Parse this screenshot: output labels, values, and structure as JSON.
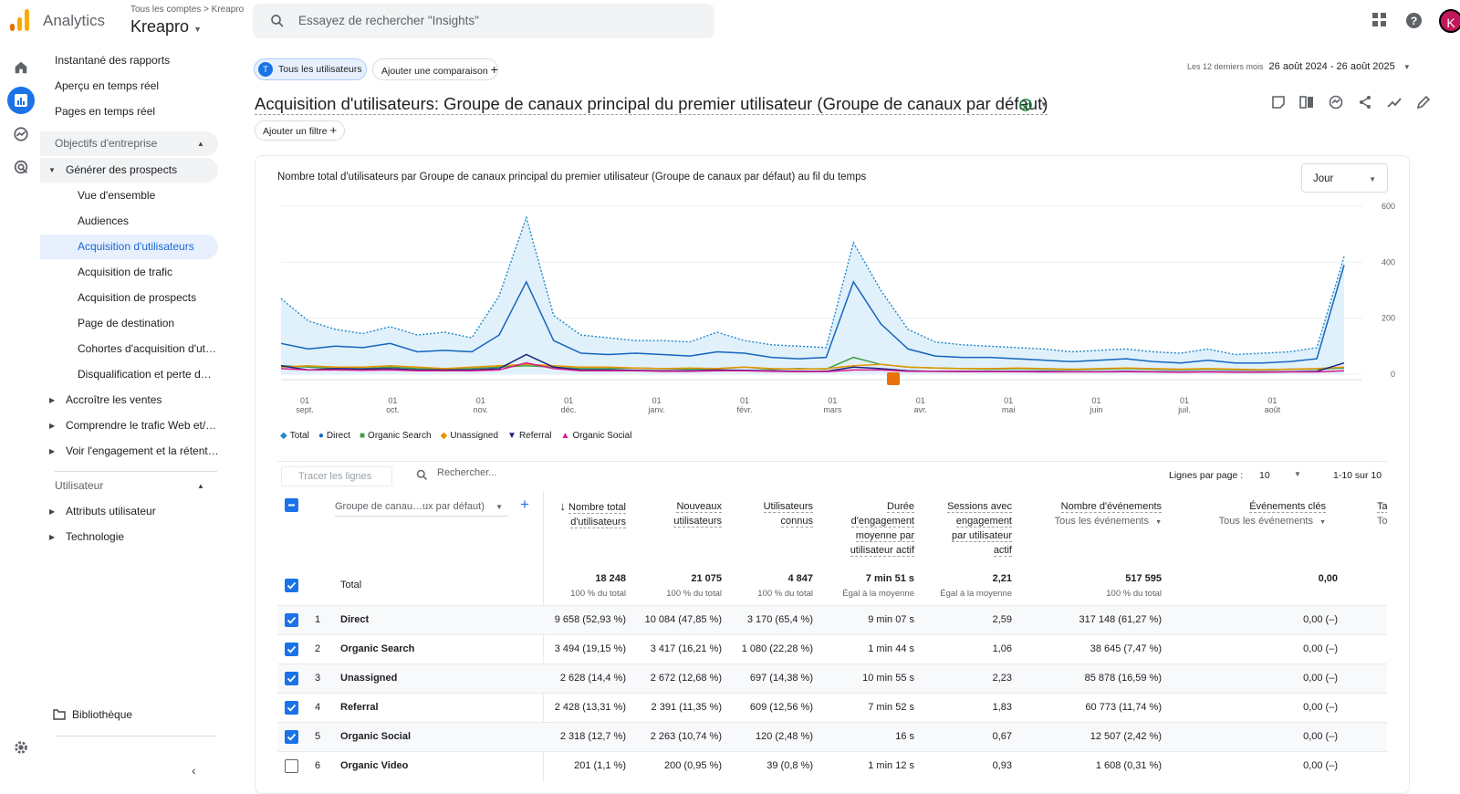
{
  "header": {
    "app_name": "Analytics",
    "breadcrumb": "Tous les comptes > Kreapro",
    "account": "Kreapro",
    "search_placeholder": "Essayez de rechercher \"Insights\"",
    "avatar_letter": "K"
  },
  "nav": {
    "items": [
      {
        "label": "Instantané des rapports"
      },
      {
        "label": "Aperçu en temps réel"
      },
      {
        "label": "Pages en temps réel"
      },
      {
        "label": "Objectifs d'entreprise"
      },
      {
        "label": "Générer des prospects"
      },
      {
        "label": "Vue d'ensemble"
      },
      {
        "label": "Audiences"
      },
      {
        "label": "Acquisition d'utilisateurs"
      },
      {
        "label": "Acquisition de trafic"
      },
      {
        "label": "Acquisition de prospects"
      },
      {
        "label": "Page de destination"
      },
      {
        "label": "Cohortes d'acquisition d'ut…"
      },
      {
        "label": "Disqualification et perte d…"
      },
      {
        "label": "Accroître les ventes"
      },
      {
        "label": "Comprendre le trafic Web et/…"
      },
      {
        "label": "Voir l'engagement et la rétent…"
      },
      {
        "label": "Utilisateur"
      },
      {
        "label": "Attributs utilisateur"
      },
      {
        "label": "Technologie"
      }
    ],
    "library": "Bibliothèque"
  },
  "comparison": {
    "chip_letter": "T",
    "chip_label": "Tous les utilisateurs",
    "add_label": "Ajouter une comparaison"
  },
  "date": {
    "range_label": "Les 12 derniers mois",
    "range": "26 août 2024 - 26 août 2025"
  },
  "report": {
    "title": "Acquisition d'utilisateurs: Groupe de canaux principal du premier utilisateur (Groupe de canaux par défaut)",
    "add_filter": "Ajouter un filtre"
  },
  "chart_card": {
    "title": "Nombre total d'utilisateurs par Groupe de canaux principal du premier utilisateur (Groupe de canaux par défaut) au fil du temps",
    "granularity": "Jour"
  },
  "chart_data": {
    "type": "line",
    "x_ticks": [
      {
        "d": "01",
        "m": "sept."
      },
      {
        "d": "01",
        "m": "oct."
      },
      {
        "d": "01",
        "m": "nov."
      },
      {
        "d": "01",
        "m": "déc."
      },
      {
        "d": "01",
        "m": "janv."
      },
      {
        "d": "01",
        "m": "févr."
      },
      {
        "d": "01",
        "m": "mars"
      },
      {
        "d": "01",
        "m": "avr."
      },
      {
        "d": "01",
        "m": "mai"
      },
      {
        "d": "01",
        "m": "juin"
      },
      {
        "d": "01",
        "m": "juil."
      },
      {
        "d": "01",
        "m": "août"
      }
    ],
    "y_ticks": [
      "0",
      "200",
      "400",
      "600"
    ],
    "ylim": [
      0,
      600
    ],
    "series": [
      {
        "name": "Total",
        "color": "#1e88c8",
        "values": [
          270,
          190,
          160,
          145,
          170,
          140,
          150,
          130,
          280,
          560,
          210,
          140,
          130,
          120,
          120,
          115,
          150,
          120,
          105,
          100,
          95,
          470,
          300,
          160,
          115,
          105,
          100,
          95,
          90,
          80,
          85,
          90,
          80,
          75,
          90,
          70,
          75,
          80,
          95,
          420
        ],
        "dash": true
      },
      {
        "name": "Direct",
        "color": "#1565c0",
        "values": [
          110,
          90,
          100,
          95,
          110,
          80,
          85,
          80,
          140,
          330,
          120,
          75,
          70,
          75,
          70,
          65,
          80,
          75,
          60,
          55,
          60,
          330,
          180,
          90,
          65,
          60,
          60,
          55,
          50,
          45,
          50,
          55,
          45,
          40,
          50,
          40,
          40,
          45,
          55,
          390
        ]
      },
      {
        "name": "Organic Search",
        "color": "#43a047",
        "values": [
          30,
          25,
          20,
          20,
          25,
          20,
          18,
          20,
          25,
          30,
          25,
          20,
          20,
          22,
          20,
          18,
          20,
          25,
          18,
          20,
          18,
          60,
          35,
          25,
          22,
          20,
          18,
          20,
          18,
          16,
          18,
          20,
          18,
          16,
          18,
          16,
          15,
          18,
          18,
          22
        ]
      },
      {
        "name": "Unassigned",
        "color": "#e69500",
        "values": [
          25,
          30,
          25,
          25,
          30,
          25,
          20,
          25,
          30,
          35,
          30,
          25,
          25,
          22,
          20,
          22,
          20,
          25,
          20,
          18,
          20,
          30,
          35,
          25,
          22,
          20,
          20,
          22,
          20,
          18,
          20,
          22,
          20,
          18,
          20,
          18,
          16,
          18,
          20,
          25
        ]
      },
      {
        "name": "Referral",
        "color": "#1a237e",
        "values": [
          30,
          15,
          20,
          18,
          20,
          15,
          15,
          15,
          20,
          70,
          25,
          15,
          15,
          14,
          12,
          12,
          15,
          14,
          12,
          10,
          10,
          25,
          20,
          12,
          10,
          10,
          10,
          10,
          10,
          9,
          9,
          10,
          9,
          8,
          9,
          8,
          8,
          9,
          10,
          40
        ]
      },
      {
        "name": "Organic Social",
        "color": "#d81b8c",
        "values": [
          20,
          15,
          15,
          14,
          15,
          12,
          12,
          12,
          15,
          40,
          20,
          12,
          12,
          12,
          10,
          10,
          12,
          12,
          10,
          9,
          9,
          15,
          15,
          10,
          10,
          9,
          9,
          9,
          8,
          8,
          8,
          9,
          8,
          7,
          8,
          7,
          7,
          8,
          8,
          12
        ]
      }
    ]
  },
  "table": {
    "tracer": "Tracer les lignes",
    "search_placeholder": "Rechercher...",
    "rows_per_page_label": "Lignes par page :",
    "rows_per_page": "10",
    "pagination": "1-10 sur 10",
    "dimension_label": "Groupe de canau…ux par défaut)",
    "columns": [
      {
        "l1": "Nombre total",
        "l2": "d'utilisateurs"
      },
      {
        "l1": "Nouveaux",
        "l2": "utilisateurs"
      },
      {
        "l1": "Utilisateurs",
        "l2": "connus"
      },
      {
        "l1": "Durée",
        "l2": "d'engagement",
        "l3": "moyenne par",
        "l4": "utilisateur actif"
      },
      {
        "l1": "Sessions avec",
        "l2": "engagement",
        "l3": "par utilisateur",
        "l4": "actif"
      },
      {
        "l1": "Nombre d'événements",
        "sub": "Tous les événements"
      },
      {
        "l1": "Événements clés",
        "sub": "Tous les événements"
      },
      {
        "l1": "Ta",
        "sub": "To"
      }
    ],
    "total": {
      "label": "Total",
      "c1": "18 248",
      "c1s": "100 % du total",
      "c2": "21 075",
      "c2s": "100 % du total",
      "c3": "4 847",
      "c3s": "100 % du total",
      "c4": "7 min 51 s",
      "c4s": "Égal à la moyenne",
      "c5": "2,21",
      "c5s": "Égal à la moyenne",
      "c6": "517 595",
      "c6s": "100 % du total",
      "c7": "0,00"
    },
    "rows": [
      {
        "n": "1",
        "name": "Direct",
        "c1": "9 658 (52,93 %)",
        "c2": "10 084 (47,85 %)",
        "c3": "3 170 (65,4 %)",
        "c4": "9 min 07 s",
        "c5": "2,59",
        "c6": "317 148 (61,27 %)",
        "c7": "0,00 (–)",
        "checked": true
      },
      {
        "n": "2",
        "name": "Organic Search",
        "c1": "3 494 (19,15 %)",
        "c2": "3 417 (16,21 %)",
        "c3": "1 080 (22,28 %)",
        "c4": "1 min 44 s",
        "c5": "1,06",
        "c6": "38 645 (7,47 %)",
        "c7": "0,00 (–)",
        "checked": true
      },
      {
        "n": "3",
        "name": "Unassigned",
        "c1": "2 628 (14,4 %)",
        "c2": "2 672 (12,68 %)",
        "c3": "697 (14,38 %)",
        "c4": "10 min 55 s",
        "c5": "2,23",
        "c6": "85 878 (16,59 %)",
        "c7": "0,00 (–)",
        "checked": true
      },
      {
        "n": "4",
        "name": "Referral",
        "c1": "2 428 (13,31 %)",
        "c2": "2 391 (11,35 %)",
        "c3": "609 (12,56 %)",
        "c4": "7 min 52 s",
        "c5": "1,83",
        "c6": "60 773 (11,74 %)",
        "c7": "0,00 (–)",
        "checked": true
      },
      {
        "n": "5",
        "name": "Organic Social",
        "c1": "2 318 (12,7 %)",
        "c2": "2 263 (10,74 %)",
        "c3": "120 (2,48 %)",
        "c4": "16 s",
        "c5": "0,67",
        "c6": "12 507 (2,42 %)",
        "c7": "0,00 (–)",
        "checked": true
      },
      {
        "n": "6",
        "name": "Organic Video",
        "c1": "201 (1,1 %)",
        "c2": "200 (0,95 %)",
        "c3": "39 (0,8 %)",
        "c4": "1 min 12 s",
        "c5": "0,93",
        "c6": "1 608 (0,31 %)",
        "c7": "0,00 (–)",
        "checked": false
      }
    ]
  }
}
